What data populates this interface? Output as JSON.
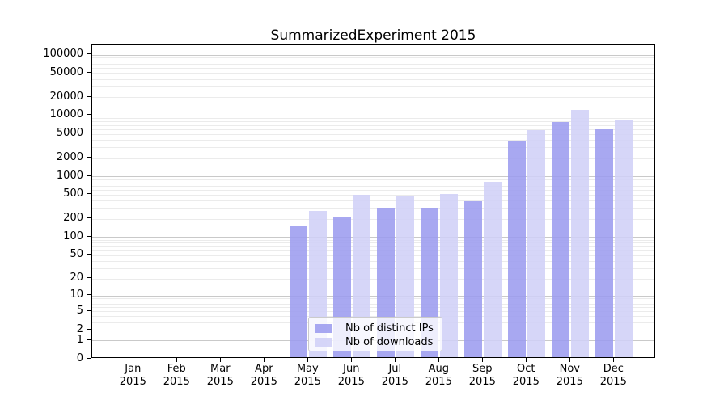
{
  "title": "SummarizedExperiment 2015",
  "chart_data": {
    "type": "bar",
    "title": "SummarizedExperiment 2015",
    "x_ticks": [
      {
        "month": "Jan",
        "year": "2015"
      },
      {
        "month": "Feb",
        "year": "2015"
      },
      {
        "month": "Mar",
        "year": "2015"
      },
      {
        "month": "Apr",
        "year": "2015"
      },
      {
        "month": "May",
        "year": "2015"
      },
      {
        "month": "Jun",
        "year": "2015"
      },
      {
        "month": "Jul",
        "year": "2015"
      },
      {
        "month": "Aug",
        "year": "2015"
      },
      {
        "month": "Sep",
        "year": "2015"
      },
      {
        "month": "Oct",
        "year": "2015"
      },
      {
        "month": "Nov",
        "year": "2015"
      },
      {
        "month": "Dec",
        "year": "2015"
      }
    ],
    "series": [
      {
        "name": "Nb of distinct IPs",
        "color": "#9b9bef",
        "values": [
          0,
          0,
          0,
          0,
          140,
          205,
          280,
          280,
          365,
          3550,
          7300,
          5600
        ]
      },
      {
        "name": "Nb of downloads",
        "color": "#d0d0f7",
        "values": [
          0,
          0,
          0,
          0,
          255,
          475,
          460,
          490,
          760,
          5350,
          11700,
          8000
        ]
      }
    ],
    "y_scale": "log10(value+1)",
    "y_ticks": [
      {
        "value": 0,
        "label": "0"
      },
      {
        "value": 1,
        "label": "1"
      },
      {
        "value": 2,
        "label": "2"
      },
      {
        "value": 5,
        "label": "5"
      },
      {
        "value": 10,
        "label": "10"
      },
      {
        "value": 20,
        "label": "20"
      },
      {
        "value": 50,
        "label": "50"
      },
      {
        "value": 100,
        "label": "100"
      },
      {
        "value": 200,
        "label": "200"
      },
      {
        "value": 500,
        "label": "500"
      },
      {
        "value": 1000,
        "label": "1000"
      },
      {
        "value": 2000,
        "label": "2000"
      },
      {
        "value": 5000,
        "label": "5000"
      },
      {
        "value": 10000,
        "label": "10000"
      },
      {
        "value": 20000,
        "label": "20000"
      },
      {
        "value": 50000,
        "label": "50000"
      },
      {
        "value": 100000,
        "label": "100000"
      }
    ],
    "ylim": [
      0,
      143000
    ],
    "grid": {
      "horizontal": true,
      "major_color": "#c9c9c9",
      "minor_color": "#ebebeb"
    },
    "legend": {
      "position": "inside-bottom-center"
    }
  }
}
